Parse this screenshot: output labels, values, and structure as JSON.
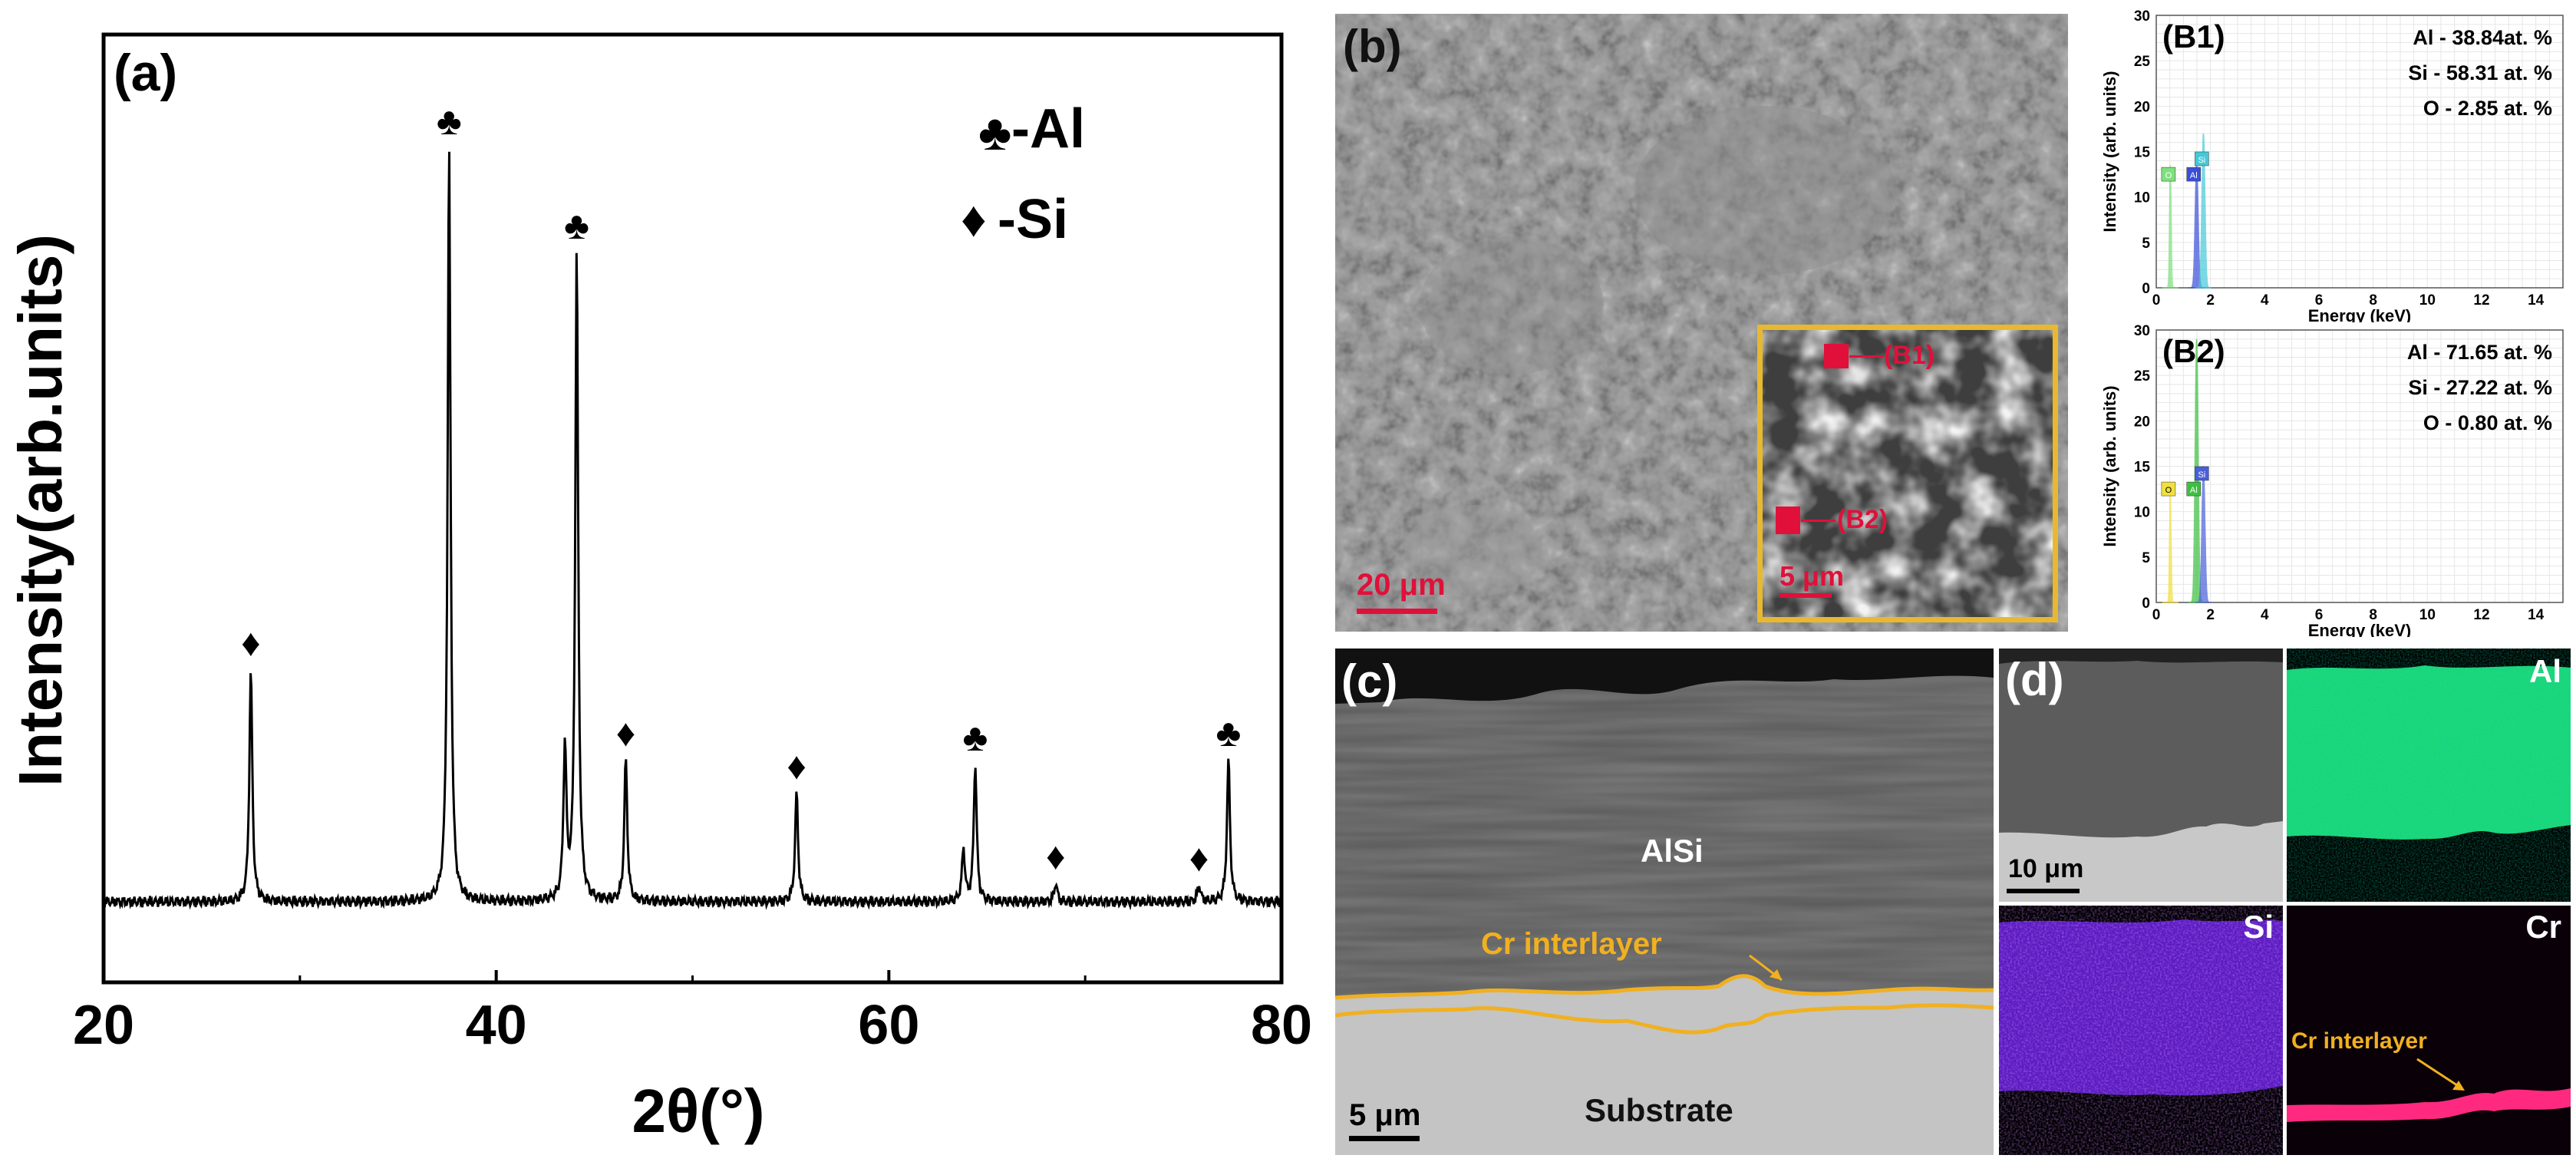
{
  "chart_data": [
    {
      "panel": "(a)",
      "type": "line",
      "xlabel": "2θ(°)",
      "ylabel": "Intensity(arb.units)",
      "xlim": [
        20,
        80
      ],
      "ylim": [
        0,
        100
      ],
      "x_ticks": [
        20,
        40,
        60,
        80
      ],
      "yticks_shown": false,
      "grid": false,
      "legend": {
        "placement": "top-right",
        "entries": [
          {
            "symbol": "♣",
            "label": "-Al"
          },
          {
            "symbol": "♦",
            "label": "-Si"
          }
        ]
      },
      "baseline": 8.5,
      "peaks": [
        {
          "x": 27.5,
          "y": 33.0,
          "phase": "Si",
          "symbol": "♦"
        },
        {
          "x": 37.6,
          "y": 88.0,
          "phase": "Al",
          "symbol": "♣"
        },
        {
          "x": 43.5,
          "y": 24.5,
          "phase": "Al",
          "symbol": ""
        },
        {
          "x": 44.1,
          "y": 77.0,
          "phase": "Al",
          "symbol": "♣"
        },
        {
          "x": 46.6,
          "y": 23.5,
          "phase": "Si",
          "symbol": "♦"
        },
        {
          "x": 55.3,
          "y": 20.0,
          "phase": "Si",
          "symbol": "♦"
        },
        {
          "x": 63.8,
          "y": 14.0,
          "phase": "Al",
          "symbol": ""
        },
        {
          "x": 64.4,
          "y": 23.0,
          "phase": "Al",
          "symbol": "♣"
        },
        {
          "x": 68.5,
          "y": 10.5,
          "phase": "Si",
          "symbol": "♦"
        },
        {
          "x": 75.8,
          "y": 10.3,
          "phase": "Si",
          "symbol": "♦"
        },
        {
          "x": 77.3,
          "y": 23.5,
          "phase": "Al",
          "symbol": "♣"
        }
      ]
    },
    {
      "panel": "(B1)",
      "type": "area",
      "xlabel": "Energy (keV)",
      "ylabel": "Intensity (arb. units)",
      "xlim": [
        0,
        15
      ],
      "ylim": [
        0,
        30
      ],
      "x_ticks": [
        0,
        2,
        4,
        6,
        8,
        10,
        12,
        14
      ],
      "y_ticks": [
        0,
        5,
        10,
        15,
        20,
        25,
        30
      ],
      "grid": true,
      "peaks": [
        {
          "element": "O",
          "x": 0.52,
          "y": 13.5,
          "color": "#7ee07e"
        },
        {
          "element": "Al",
          "x": 1.49,
          "y": 13.5,
          "color": "#3a4fd8"
        },
        {
          "element": "Si",
          "x": 1.74,
          "y": 17.0,
          "color": "#45c8d8"
        }
      ],
      "composition": [
        "Al - 38.84at. %",
        "Si - 58.31 at. %",
        "O - 2.85 at. %"
      ]
    },
    {
      "panel": "(B2)",
      "type": "area",
      "xlabel": "Energy (keV)",
      "ylabel": "Intensity (arb. units)",
      "xlim": [
        0,
        15
      ],
      "ylim": [
        0,
        30
      ],
      "x_ticks": [
        0,
        2,
        4,
        6,
        8,
        10,
        12,
        14
      ],
      "y_ticks": [
        0,
        5,
        10,
        15,
        20,
        25,
        30
      ],
      "grid": true,
      "peaks": [
        {
          "element": "O",
          "x": 0.52,
          "y": 12.0,
          "color": "#f0e040"
        },
        {
          "element": "Al",
          "x": 1.49,
          "y": 29.0,
          "color": "#3cc040"
        },
        {
          "element": "Si",
          "x": 1.74,
          "y": 15.0,
          "color": "#4a5fd8"
        }
      ],
      "composition": [
        "Al - 71.65 at. %",
        "Si - 27.22 at. %",
        "O - 0.80 at. %"
      ]
    }
  ],
  "images": {
    "b": {
      "label": "(b)",
      "scale_bar": "20 μm",
      "inset_scale_bar": "5 μm",
      "inset_markers": [
        "(B1)",
        "(B2)"
      ]
    },
    "c": {
      "label": "(c)",
      "region_top": "AlSi",
      "region_bottom": "Substrate",
      "interlayer": "Cr interlayer",
      "scale_bar": "5 μm"
    },
    "d": {
      "label": "(d)",
      "scale_bar": "10 μm",
      "maps": [
        "Al",
        "Si",
        "Cr"
      ],
      "interlayer": "Cr interlayer"
    }
  },
  "colors": {
    "scale_bar_red": "#e0103a",
    "inset_border": "#e8b830",
    "interlayer_outline": "#f0b020",
    "al_map": "#1ed87a",
    "si_map": "#6a20d8",
    "cr_map": "#ff2a80"
  }
}
